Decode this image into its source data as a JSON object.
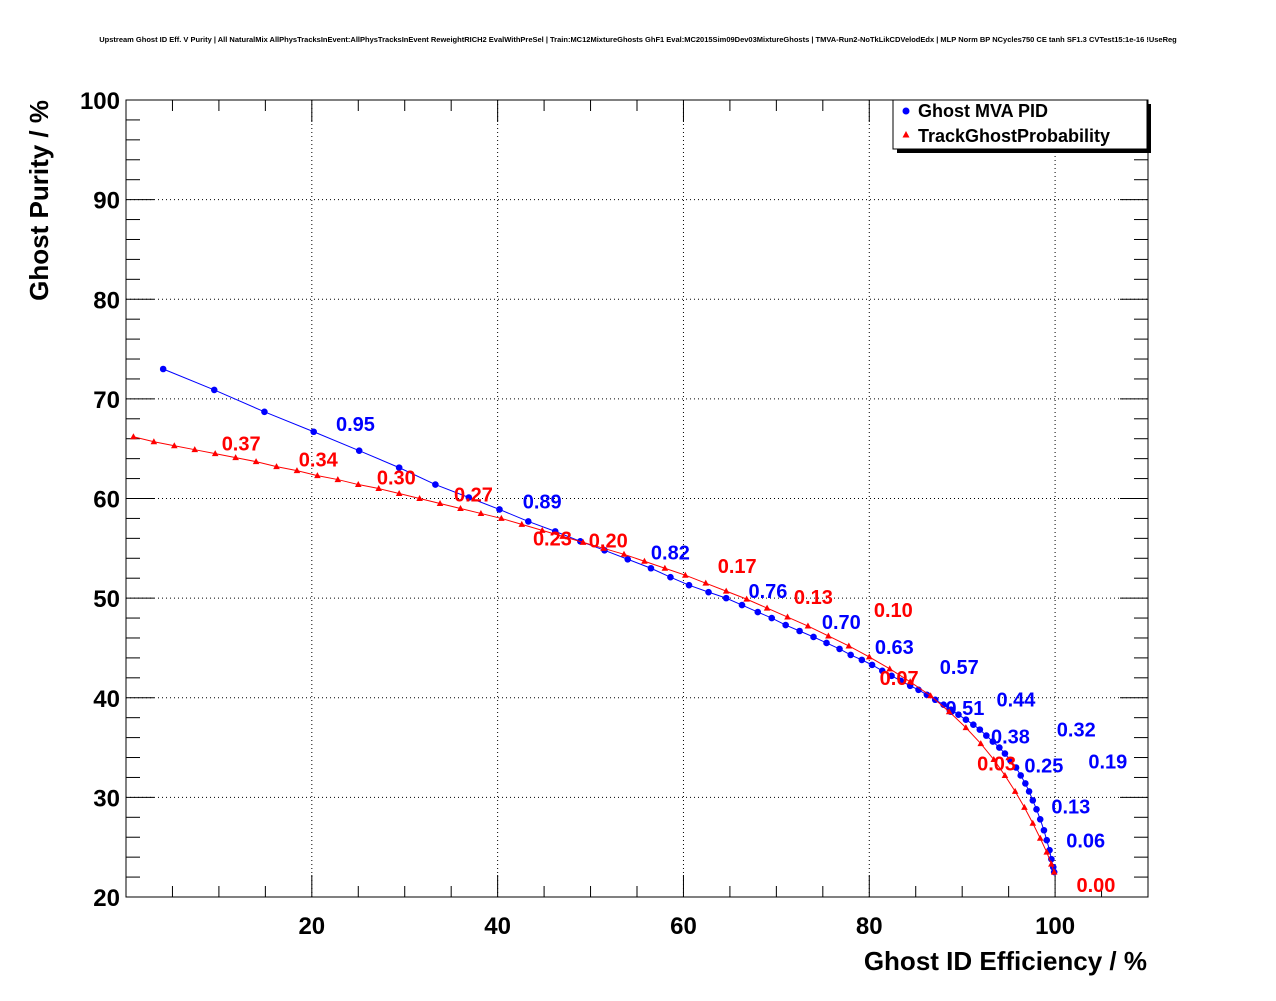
{
  "chart_data": {
    "type": "scatter",
    "title": "Upstream Ghost ID Eff. V Purity | All NaturalMix AllPhysTracksInEvent:AllPhysTracksInEvent ReweightRICH2 EvalWithPreSel | Train:MC12MixtureGhosts GhF1 Eval:MC2015Sim09Dev03MixtureGhosts | TMVA-Run2-NoTkLikCDVelodEdx | MLP Norm BP NCycles750 CE tanh SF1.3 CVTest15:1e-16 !UseReg",
    "xlabel": "Ghost ID Efficiency / %",
    "ylabel": "Ghost Purity / %",
    "xlim": [
      0,
      110
    ],
    "ylim": [
      20,
      100
    ],
    "xticks": [
      "20",
      "40",
      "60",
      "80",
      "100"
    ],
    "yticks": [
      "20",
      "30",
      "40",
      "50",
      "60",
      "70",
      "80",
      "90",
      "100"
    ],
    "grid": true,
    "legend_position": "top-right",
    "series": [
      {
        "name": "Ghost MVA PID",
        "color": "#0000ff",
        "marker": "circle",
        "x": [
          4.0,
          9.5,
          14.9,
          20.2,
          25.1,
          29.4,
          33.3,
          36.9,
          40.2,
          43.3,
          46.2,
          48.9,
          51.5,
          54.0,
          56.5,
          58.6,
          60.6,
          62.7,
          64.6,
          66.3,
          68.0,
          69.5,
          71.0,
          72.5,
          74.0,
          75.4,
          76.8,
          78.0,
          79.2,
          80.3,
          81.4,
          82.4,
          83.4,
          84.4,
          85.3,
          86.2,
          87.1,
          88.0,
          88.8,
          89.6,
          90.4,
          91.2,
          91.9,
          92.6,
          93.3,
          94.0,
          94.6,
          95.2,
          95.8,
          96.3,
          96.8,
          97.2,
          97.6,
          98.0,
          98.4,
          98.8,
          99.1,
          99.4,
          99.6,
          99.8,
          99.9
        ],
        "y": [
          73.0,
          70.9,
          68.7,
          66.7,
          64.8,
          63.1,
          61.4,
          60.1,
          58.9,
          57.7,
          56.7,
          55.7,
          54.8,
          53.9,
          53.0,
          52.1,
          51.3,
          50.6,
          50.0,
          49.3,
          48.6,
          48.0,
          47.3,
          46.7,
          46.1,
          45.5,
          44.9,
          44.3,
          43.8,
          43.3,
          42.7,
          42.2,
          41.7,
          41.2,
          40.8,
          40.3,
          39.8,
          39.3,
          38.8,
          38.3,
          37.8,
          37.3,
          36.8,
          36.2,
          35.6,
          35.0,
          34.4,
          33.7,
          33.0,
          32.2,
          31.4,
          30.6,
          29.7,
          28.8,
          27.8,
          26.7,
          25.7,
          24.7,
          23.8,
          23.0,
          22.5
        ],
        "labels": [
          {
            "text": "0.95",
            "x": 22.6,
            "y": 67.5
          },
          {
            "text": "0.89",
            "x": 42.7,
            "y": 59.7
          },
          {
            "text": "0.82",
            "x": 56.5,
            "y": 54.6
          },
          {
            "text": "0.76",
            "x": 67.0,
            "y": 50.7
          },
          {
            "text": "0.70",
            "x": 74.9,
            "y": 47.6
          },
          {
            "text": "0.63",
            "x": 80.6,
            "y": 45.1
          },
          {
            "text": "0.57",
            "x": 84.9,
            "y": 43.1
          },
          {
            "text": "0.51",
            "x": 88.2,
            "y": 41.2
          },
          {
            "text": "0.44",
            "x": 91.0,
            "y": 39.8
          },
          {
            "text": "0.38",
            "x": 93.1,
            "y": 38.3
          },
          {
            "text": "0.32",
            "x": 94.8,
            "y": 36.8
          },
          {
            "text": "0.25",
            "x": 96.7,
            "y": 35.4
          },
          {
            "text": "0.19",
            "x": 98.2,
            "y": 33.6
          },
          {
            "text": "0.13",
            "x": 99.6,
            "y": 31.3
          },
          {
            "text": "0.06",
            "x": 101.2,
            "y": 27.9
          }
        ]
      },
      {
        "name": "TrackGhostProbability",
        "color": "#ff0000",
        "marker": "triangle",
        "x": [
          0.8,
          3.0,
          5.2,
          7.4,
          9.6,
          11.8,
          14.0,
          16.2,
          18.4,
          20.6,
          22.8,
          25.0,
          27.2,
          29.4,
          31.6,
          33.8,
          36.0,
          38.2,
          40.4,
          42.6,
          44.8,
          47.0,
          49.2,
          51.4,
          53.6,
          55.8,
          58.0,
          60.2,
          62.4,
          64.6,
          66.8,
          69.0,
          71.2,
          73.4,
          75.6,
          77.8,
          80.0,
          82.2,
          84.4,
          86.6,
          88.6,
          90.4,
          92.0,
          93.4,
          94.6,
          95.7,
          96.7,
          97.6,
          98.4,
          99.1,
          99.6,
          99.9
        ],
        "y": [
          66.2,
          65.7,
          65.3,
          64.9,
          64.5,
          64.1,
          63.7,
          63.2,
          62.8,
          62.3,
          61.9,
          61.4,
          61.0,
          60.5,
          60.0,
          59.5,
          59.0,
          58.5,
          58.0,
          57.4,
          56.8,
          56.2,
          55.6,
          55.0,
          54.4,
          53.7,
          53.0,
          52.3,
          51.5,
          50.7,
          49.9,
          49.0,
          48.1,
          47.2,
          46.2,
          45.2,
          44.1,
          42.9,
          41.6,
          40.2,
          38.6,
          37.0,
          35.4,
          33.8,
          32.2,
          30.6,
          29.0,
          27.4,
          25.9,
          24.5,
          23.3,
          22.5
        ],
        "labels": [
          {
            "text": "0.37",
            "x": 10.3,
            "y": 65.5
          },
          {
            "text": "0.34",
            "x": 18.6,
            "y": 63.9
          },
          {
            "text": "0.30",
            "x": 27.0,
            "y": 62.1
          },
          {
            "text": "0.27",
            "x": 35.3,
            "y": 60.4
          },
          {
            "text": "0.23",
            "x": 43.8,
            "y": 58.2
          },
          {
            "text": "0.20",
            "x": 52.5,
            "y": 55.8
          },
          {
            "text": "0.17",
            "x": 61.0,
            "y": 53.2
          },
          {
            "text": "0.13",
            "x": 69.2,
            "y": 50.1
          },
          {
            "text": "0.10",
            "x": 77.8,
            "y": 46.6
          },
          {
            "text": "0.07",
            "x": 86.5,
            "y": 42.0
          },
          {
            "text": "0.03",
            "x": 94.3,
            "y": 35.6
          },
          {
            "text": "0.00",
            "x": 102.3,
            "y": 23.4
          }
        ]
      }
    ]
  }
}
